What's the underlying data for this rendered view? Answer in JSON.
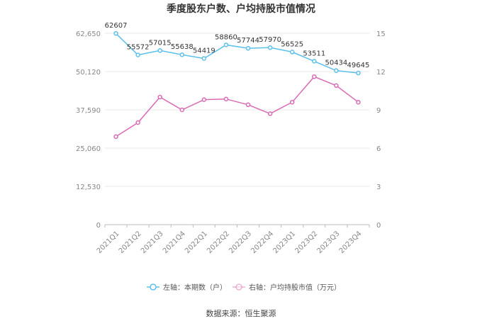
{
  "chart_data": {
    "type": "line",
    "title": "季度股东户数、户均持股市值情况",
    "categories": [
      "2021Q1",
      "2021Q2",
      "2021Q3",
      "2021Q4",
      "2022Q1",
      "2022Q2",
      "2022Q3",
      "2022Q4",
      "2023Q1",
      "2023Q2",
      "2023Q3",
      "2023Q4"
    ],
    "left_axis": {
      "ylim": [
        0,
        62650
      ],
      "ticks": [
        "0",
        "12,530",
        "25,060",
        "37,590",
        "50,120",
        "62,650"
      ]
    },
    "right_axis": {
      "ylim": [
        0,
        15
      ],
      "ticks": [
        "0",
        "3",
        "6",
        "9",
        "12",
        "15"
      ]
    },
    "series": [
      {
        "name": "左轴：本期数（户）",
        "axis": "left",
        "color": "#5bc0eb",
        "values": [
          62607,
          55572,
          57015,
          55638,
          54419,
          58860,
          57744,
          57970,
          56525,
          53511,
          50434,
          49645
        ]
      },
      {
        "name": "右轴：户均持股市值（万元）",
        "axis": "right",
        "color": "#d96bb5",
        "values": [
          6.9,
          8.0,
          10.0,
          9.0,
          9.8,
          9.85,
          9.4,
          8.7,
          9.6,
          11.6,
          10.9,
          9.6
        ]
      }
    ],
    "grid": true,
    "legend_position": "bottom",
    "source": "数据来源：恒生聚源"
  }
}
